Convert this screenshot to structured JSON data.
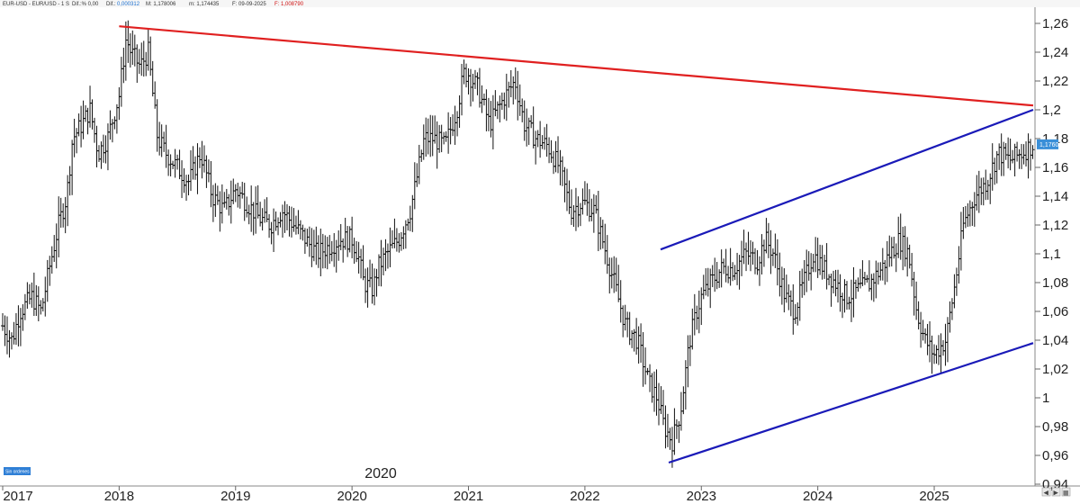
{
  "header": {
    "symbol": "EUR-USD - EUR/USD - 1 S",
    "diff_label": "Dif.:% 0,00",
    "dif_label": "Dif.:",
    "dif_value": "0,000312",
    "max_label": "M: 1,178006",
    "min_label": "m: 1,174435",
    "date_label": "F: 09-09-2025",
    "f_value": "F: 1,008790"
  },
  "badge": {
    "label": "Sin ordenes"
  },
  "center_year_label": "2020",
  "controls": {
    "left_arrow": "◀",
    "right_arrow": "▶",
    "grid": "▦"
  },
  "colors": {
    "resistance": "#e02020",
    "channel": "#1a1ab8",
    "bars": "#111111",
    "price_label_bg": "#3a8fd8"
  },
  "chart_data": {
    "type": "ohlc-bar",
    "ylim": [
      0.94,
      1.27
    ],
    "y_ticks": [
      0.94,
      0.96,
      0.98,
      1.0,
      1.02,
      1.04,
      1.06,
      1.08,
      1.1,
      1.12,
      1.14,
      1.16,
      1.18,
      1.2,
      1.22,
      1.24,
      1.26
    ],
    "y_tick_labels": [
      "0,94",
      "0,96",
      "0,98",
      "1",
      "1,02",
      "1,04",
      "1,06",
      "1,08",
      "1,1",
      "1,12",
      "1,14",
      "1,16",
      "1,18",
      "1,2",
      "1,22",
      "1,24",
      "1,26"
    ],
    "x_range": [
      2017.0,
      2025.85
    ],
    "x_ticks": [
      2017,
      2018,
      2019,
      2020,
      2021,
      2022,
      2023,
      2024,
      2025
    ],
    "x_tick_labels": [
      "2017",
      "2018",
      "2019",
      "2020",
      "2021",
      "2022",
      "2023",
      "2024",
      "2025"
    ],
    "last_price_label": "1,17602",
    "last_price": 1.176,
    "trendlines": [
      {
        "name": "resistance",
        "x": [
          2018.0,
          2025.85
        ],
        "y": [
          1.258,
          1.203
        ]
      },
      {
        "name": "channel-upper",
        "x": [
          2022.65,
          2025.85
        ],
        "y": [
          1.103,
          1.2
        ]
      },
      {
        "name": "channel-lower",
        "x": [
          2022.72,
          2025.85
        ],
        "y": [
          0.955,
          1.038
        ]
      }
    ],
    "path": [
      [
        2017.0,
        1.05
      ],
      [
        2017.08,
        1.04
      ],
      [
        2017.15,
        1.06
      ],
      [
        2017.25,
        1.07
      ],
      [
        2017.33,
        1.06
      ],
      [
        2017.4,
        1.09
      ],
      [
        2017.48,
        1.12
      ],
      [
        2017.55,
        1.14
      ],
      [
        2017.6,
        1.18
      ],
      [
        2017.68,
        1.19
      ],
      [
        2017.75,
        1.2
      ],
      [
        2017.82,
        1.17
      ],
      [
        2017.9,
        1.18
      ],
      [
        2018.0,
        1.21
      ],
      [
        2018.06,
        1.25
      ],
      [
        2018.1,
        1.24
      ],
      [
        2018.18,
        1.23
      ],
      [
        2018.25,
        1.24
      ],
      [
        2018.33,
        1.18
      ],
      [
        2018.4,
        1.17
      ],
      [
        2018.5,
        1.16
      ],
      [
        2018.6,
        1.15
      ],
      [
        2018.7,
        1.17
      ],
      [
        2018.8,
        1.14
      ],
      [
        2018.9,
        1.13
      ],
      [
        2019.0,
        1.145
      ],
      [
        2019.1,
        1.135
      ],
      [
        2019.2,
        1.125
      ],
      [
        2019.3,
        1.12
      ],
      [
        2019.4,
        1.13
      ],
      [
        2019.5,
        1.12
      ],
      [
        2019.6,
        1.11
      ],
      [
        2019.7,
        1.1
      ],
      [
        2019.8,
        1.105
      ],
      [
        2019.9,
        1.11
      ],
      [
        2020.0,
        1.11
      ],
      [
        2020.05,
        1.1
      ],
      [
        2020.1,
        1.08
      ],
      [
        2020.18,
        1.075
      ],
      [
        2020.22,
        1.09
      ],
      [
        2020.3,
        1.1
      ],
      [
        2020.4,
        1.11
      ],
      [
        2020.5,
        1.13
      ],
      [
        2020.55,
        1.15
      ],
      [
        2020.62,
        1.18
      ],
      [
        2020.7,
        1.18
      ],
      [
        2020.8,
        1.175
      ],
      [
        2020.9,
        1.2
      ],
      [
        2020.96,
        1.225
      ],
      [
        2021.0,
        1.225
      ],
      [
        2021.08,
        1.215
      ],
      [
        2021.18,
        1.19
      ],
      [
        2021.25,
        1.2
      ],
      [
        2021.32,
        1.21
      ],
      [
        2021.4,
        1.22
      ],
      [
        2021.48,
        1.19
      ],
      [
        2021.58,
        1.18
      ],
      [
        2021.68,
        1.175
      ],
      [
        2021.78,
        1.16
      ],
      [
        2021.88,
        1.13
      ],
      [
        2021.96,
        1.135
      ],
      [
        2022.0,
        1.135
      ],
      [
        2022.08,
        1.13
      ],
      [
        2022.15,
        1.11
      ],
      [
        2022.25,
        1.08
      ],
      [
        2022.35,
        1.05
      ],
      [
        2022.45,
        1.04
      ],
      [
        2022.55,
        1.01
      ],
      [
        2022.62,
        1.0
      ],
      [
        2022.68,
        0.98
      ],
      [
        2022.75,
        0.97
      ],
      [
        2022.82,
        0.99
      ],
      [
        2022.9,
        1.04
      ],
      [
        2022.96,
        1.06
      ],
      [
        2023.0,
        1.07
      ],
      [
        2023.08,
        1.08
      ],
      [
        2023.18,
        1.09
      ],
      [
        2023.28,
        1.09
      ],
      [
        2023.38,
        1.1
      ],
      [
        2023.48,
        1.095
      ],
      [
        2023.55,
        1.11
      ],
      [
        2023.62,
        1.1
      ],
      [
        2023.72,
        1.07
      ],
      [
        2023.8,
        1.06
      ],
      [
        2023.88,
        1.08
      ],
      [
        2023.96,
        1.1
      ],
      [
        2024.05,
        1.09
      ],
      [
        2024.15,
        1.08
      ],
      [
        2024.25,
        1.07
      ],
      [
        2024.35,
        1.075
      ],
      [
        2024.45,
        1.08
      ],
      [
        2024.55,
        1.09
      ],
      [
        2024.62,
        1.1
      ],
      [
        2024.7,
        1.11
      ],
      [
        2024.78,
        1.1
      ],
      [
        2024.85,
        1.06
      ],
      [
        2024.92,
        1.04
      ],
      [
        2025.0,
        1.03
      ],
      [
        2025.05,
        1.035
      ],
      [
        2025.1,
        1.04
      ],
      [
        2025.18,
        1.08
      ],
      [
        2025.25,
        1.12
      ],
      [
        2025.35,
        1.14
      ],
      [
        2025.45,
        1.15
      ],
      [
        2025.55,
        1.17
      ],
      [
        2025.65,
        1.165
      ],
      [
        2025.75,
        1.17
      ],
      [
        2025.85,
        1.176
      ]
    ]
  }
}
